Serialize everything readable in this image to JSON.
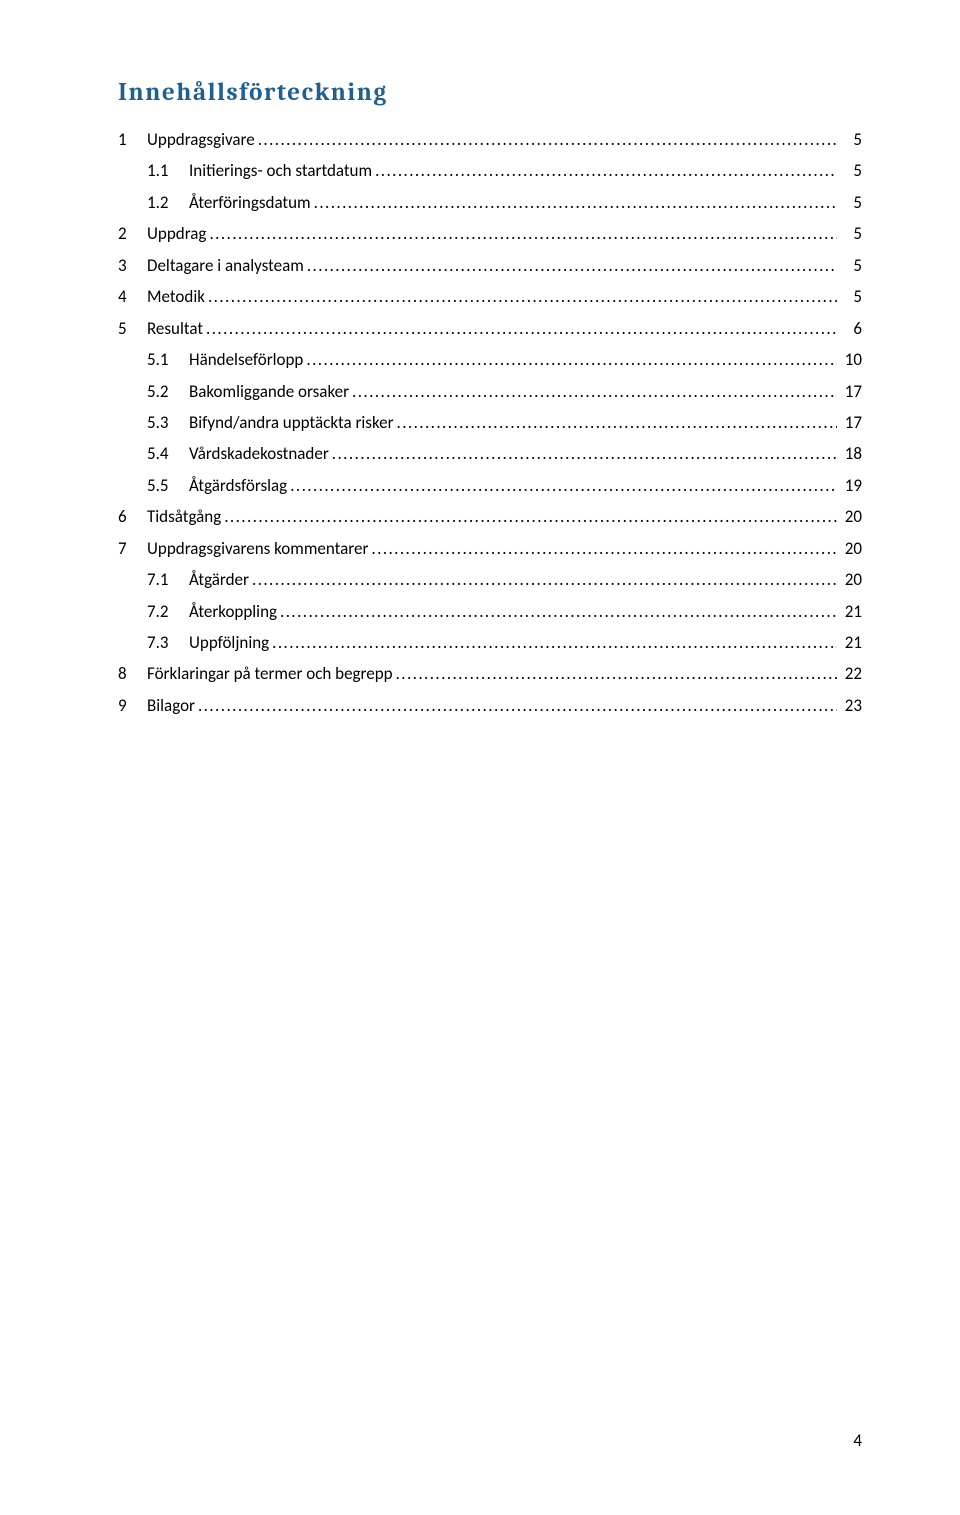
{
  "title": "Innehållsförteckning",
  "title_color": "#1f6093",
  "text_color": "#000000",
  "background_color": "#ffffff",
  "page_number": "4",
  "toc": [
    {
      "level": 1,
      "num": "1",
      "label": "Uppdragsgivare",
      "page": "5"
    },
    {
      "level": 2,
      "num": "1.1",
      "label": "Initierings- och startdatum",
      "page": "5"
    },
    {
      "level": 2,
      "num": "1.2",
      "label": "Återföringsdatum",
      "page": "5"
    },
    {
      "level": 1,
      "num": "2",
      "label": "Uppdrag",
      "page": "5"
    },
    {
      "level": 1,
      "num": "3",
      "label": "Deltagare i analysteam",
      "page": "5"
    },
    {
      "level": 1,
      "num": "4",
      "label": "Metodik",
      "page": "5"
    },
    {
      "level": 1,
      "num": "5",
      "label": "Resultat",
      "page": "6"
    },
    {
      "level": 2,
      "num": "5.1",
      "label": "Händelseförlopp",
      "page": "10"
    },
    {
      "level": 2,
      "num": "5.2",
      "label": "Bakomliggande orsaker",
      "page": "17"
    },
    {
      "level": 2,
      "num": "5.3",
      "label": "Bifynd/andra upptäckta risker",
      "page": "17"
    },
    {
      "level": 2,
      "num": "5.4",
      "label": "Vårdskadekostnader",
      "page": "18"
    },
    {
      "level": 2,
      "num": "5.5",
      "label": "Åtgärdsförslag",
      "page": "19"
    },
    {
      "level": 1,
      "num": "6",
      "label": "Tidsåtgång",
      "page": "20"
    },
    {
      "level": 1,
      "num": "7",
      "label": "Uppdragsgivarens kommentarer",
      "page": "20"
    },
    {
      "level": 2,
      "num": "7.1",
      "label": "Åtgärder",
      "page": "20"
    },
    {
      "level": 2,
      "num": "7.2",
      "label": "Återkoppling",
      "page": "21"
    },
    {
      "level": 2,
      "num": "7.3",
      "label": "Uppföljning",
      "page": "21"
    },
    {
      "level": 1,
      "num": "8",
      "label": "Förklaringar på termer och begrepp",
      "page": "22"
    },
    {
      "level": 1,
      "num": "9",
      "label": "Bilagor",
      "page": "23"
    }
  ]
}
